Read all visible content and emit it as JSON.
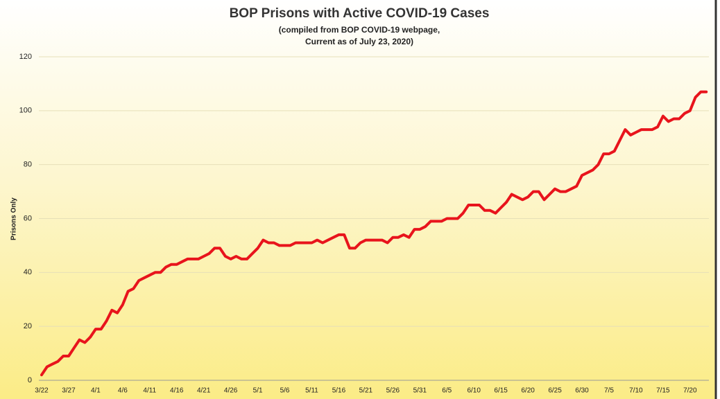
{
  "chart_data": {
    "type": "line",
    "title": "BOP Prisons with Active COVID-19 Cases",
    "subtitle": [
      "(compiled from BOP COVID-19 webpage,",
      "Current as of July 23, 2020)"
    ],
    "y_label": "Prisons Only",
    "categories": [
      "3/22",
      null,
      null,
      null,
      null,
      "3/27",
      null,
      null,
      null,
      null,
      "4/1",
      null,
      null,
      null,
      null,
      "4/6",
      null,
      null,
      null,
      null,
      "4/11",
      null,
      null,
      null,
      null,
      "4/16",
      null,
      null,
      null,
      null,
      "4/21",
      null,
      null,
      null,
      null,
      "4/26",
      null,
      null,
      null,
      null,
      "5/1",
      null,
      null,
      null,
      null,
      "5/6",
      null,
      null,
      null,
      null,
      "5/11",
      null,
      null,
      null,
      null,
      "5/16",
      null,
      null,
      null,
      null,
      "5/21",
      null,
      null,
      null,
      null,
      "5/26",
      null,
      null,
      null,
      null,
      "5/31",
      null,
      null,
      null,
      null,
      "6/5",
      null,
      null,
      null,
      null,
      "6/10",
      null,
      null,
      null,
      null,
      "6/15",
      null,
      null,
      null,
      null,
      "6/20",
      null,
      null,
      null,
      null,
      "6/25",
      null,
      null,
      null,
      null,
      "6/30",
      null,
      null,
      null,
      null,
      "7/5",
      null,
      null,
      null,
      null,
      "7/10",
      null,
      null,
      null,
      null,
      "7/15",
      null,
      null,
      null,
      null,
      "7/20",
      null,
      null,
      null
    ],
    "series": [
      {
        "name": "Prisons Only",
        "color": "#e8141c",
        "values": [
          2,
          5,
          6,
          7,
          9,
          9,
          12,
          15,
          14,
          16,
          19,
          19,
          22,
          26,
          25,
          28,
          33,
          34,
          37,
          38,
          39,
          40,
          40,
          42,
          43,
          43,
          44,
          45,
          45,
          45,
          46,
          47,
          49,
          49,
          46,
          45,
          46,
          45,
          45,
          47,
          49,
          52,
          51,
          51,
          50,
          50,
          50,
          51,
          51,
          51,
          51,
          52,
          51,
          52,
          53,
          54,
          54,
          49,
          49,
          51,
          52,
          52,
          52,
          52,
          51,
          53,
          53,
          54,
          53,
          56,
          56,
          57,
          59,
          59,
          59,
          60,
          60,
          60,
          62,
          65,
          65,
          65,
          63,
          63,
          62,
          64,
          66,
          69,
          68,
          67,
          68,
          70,
          70,
          67,
          69,
          71,
          70,
          70,
          71,
          72,
          76,
          77,
          78,
          80,
          84,
          84,
          85,
          89,
          93,
          91,
          92,
          93,
          93,
          93,
          94,
          98,
          96,
          97,
          97,
          99,
          100,
          105,
          107,
          107
        ]
      }
    ],
    "ylim": [
      0,
      120
    ],
    "yticks": [
      0,
      20,
      40,
      60,
      80,
      100,
      120
    ],
    "grid": true
  }
}
